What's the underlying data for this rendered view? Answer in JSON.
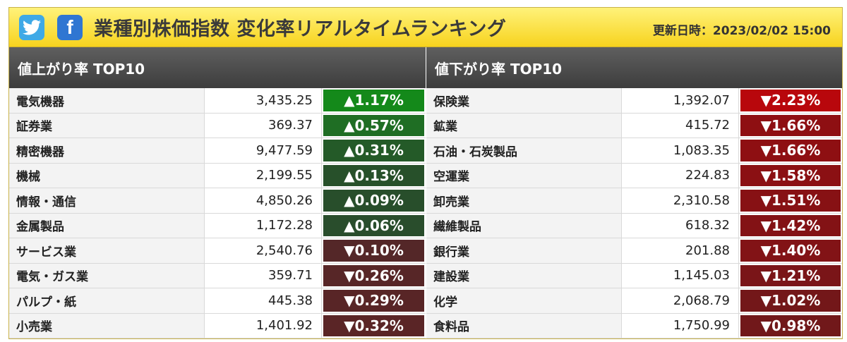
{
  "header": {
    "title": "業種別株価指数 変化率リアルタイムランキング",
    "updated": "更新日時：2023/02/02 15:00",
    "icons": [
      "twitter-icon",
      "facebook-icon"
    ],
    "facebook_glyph": "f"
  },
  "rising": {
    "heading": "値上がり率 TOP10",
    "rows": [
      {
        "name": "電気機器",
        "value": "3,435.25",
        "change": "▲1.17%",
        "color": "#14891a"
      },
      {
        "name": "証券業",
        "value": "369.37",
        "change": "▲0.57%",
        "color": "#1f6e24"
      },
      {
        "name": "精密機器",
        "value": "9,477.59",
        "change": "▲0.31%",
        "color": "#245a28"
      },
      {
        "name": "機械",
        "value": "2,199.55",
        "change": "▲0.13%",
        "color": "#27502a"
      },
      {
        "name": "情報・通信",
        "value": "4,850.26",
        "change": "▲0.09%",
        "color": "#284e2b"
      },
      {
        "name": "金属製品",
        "value": "1,172.28",
        "change": "▲0.06%",
        "color": "#294d2c"
      },
      {
        "name": "サービス業",
        "value": "2,540.76",
        "change": "▼0.10%",
        "color": "#542728"
      },
      {
        "name": "電気・ガス業",
        "value": "359.71",
        "change": "▼0.26%",
        "color": "#572627"
      },
      {
        "name": "パルプ・紙",
        "value": "445.38",
        "change": "▼0.29%",
        "color": "#582526"
      },
      {
        "name": "小売業",
        "value": "1,401.92",
        "change": "▼0.32%",
        "color": "#5a2526"
      }
    ]
  },
  "falling": {
    "heading": "値下がり率 TOP10",
    "rows": [
      {
        "name": "保険業",
        "value": "1,392.07",
        "change": "▼2.23%",
        "color": "#b8070c"
      },
      {
        "name": "鉱業",
        "value": "415.72",
        "change": "▼1.66%",
        "color": "#8e0f12"
      },
      {
        "name": "石油・石炭製品",
        "value": "1,083.35",
        "change": "▼1.66%",
        "color": "#8e0f12"
      },
      {
        "name": "空運業",
        "value": "224.83",
        "change": "▼1.58%",
        "color": "#8b1013"
      },
      {
        "name": "卸売業",
        "value": "2,310.58",
        "change": "▼1.51%",
        "color": "#871114"
      },
      {
        "name": "繊維製品",
        "value": "618.32",
        "change": "▼1.42%",
        "color": "#831215"
      },
      {
        "name": "銀行業",
        "value": "201.88",
        "change": "▼1.40%",
        "color": "#821316"
      },
      {
        "name": "建設業",
        "value": "1,145.03",
        "change": "▼1.21%",
        "color": "#7a1518"
      },
      {
        "name": "化学",
        "value": "2,068.79",
        "change": "▼1.02%",
        "color": "#731719"
      },
      {
        "name": "食料品",
        "value": "1,750.99",
        "change": "▼0.98%",
        "color": "#71181a"
      }
    ]
  }
}
